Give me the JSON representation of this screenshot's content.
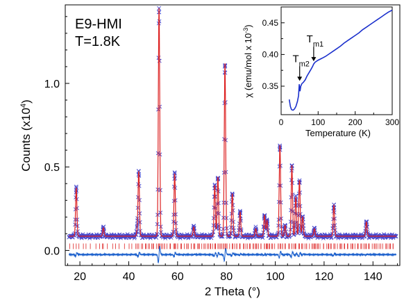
{
  "chart_data": [
    {
      "type": "scatter",
      "annotation": {
        "sample": "E9-HMI",
        "temperature": "T=1.8K"
      },
      "xlabel": "2 Theta (°)",
      "ylabel": "Counts (x10",
      "ylabel_exp": "4",
      "ylabel_close": ")",
      "xlim": [
        14,
        151
      ],
      "ylim": [
        -0.09,
        1.47
      ],
      "xticks": [
        20,
        40,
        60,
        80,
        100,
        120,
        140
      ],
      "yticks": [
        0.0,
        0.5,
        1.0
      ],
      "ytick_labels": [
        "0.0",
        "0.5",
        "1.0"
      ],
      "background_level": 0.085,
      "difference_offset": -0.025,
      "series": [
        {
          "role": "observed",
          "marker": "x",
          "color": "#4444cc"
        },
        {
          "role": "calculated",
          "color": "#dd2222"
        },
        {
          "role": "reflection-ticks",
          "color": "#dd2222"
        },
        {
          "role": "difference",
          "color": "#1a5fcc"
        }
      ],
      "peaks": [
        {
          "x": 18.5,
          "y": 0.375
        },
        {
          "x": 29.6,
          "y": 0.135
        },
        {
          "x": 43.5,
          "y": 0.12
        },
        {
          "x": 44.1,
          "y": 0.47
        },
        {
          "x": 52.4,
          "y": 1.45
        },
        {
          "x": 58.8,
          "y": 0.46
        },
        {
          "x": 66.6,
          "y": 0.14
        },
        {
          "x": 75.2,
          "y": 0.39
        },
        {
          "x": 76.5,
          "y": 0.44
        },
        {
          "x": 79.4,
          "y": 1.12
        },
        {
          "x": 82.4,
          "y": 0.34
        },
        {
          "x": 85.6,
          "y": 0.23
        },
        {
          "x": 92.0,
          "y": 0.13
        },
        {
          "x": 95.6,
          "y": 0.21
        },
        {
          "x": 96.6,
          "y": 0.18
        },
        {
          "x": 101.9,
          "y": 0.63
        },
        {
          "x": 104.0,
          "y": 0.15
        },
        {
          "x": 106.8,
          "y": 0.51
        },
        {
          "x": 108.4,
          "y": 0.32
        },
        {
          "x": 109.9,
          "y": 0.42
        },
        {
          "x": 111.2,
          "y": 0.2
        },
        {
          "x": 116.0,
          "y": 0.13
        },
        {
          "x": 124.0,
          "y": 0.27
        },
        {
          "x": 137.3,
          "y": 0.17
        }
      ]
    },
    {
      "type": "line",
      "xlabel": "Temperature (K)",
      "ylabel": "χ (emu/mol x 10",
      "ylabel_exp": "-3",
      "ylabel_close": ")",
      "xlim": [
        0,
        300
      ],
      "ylim": [
        0.305,
        0.475
      ],
      "xticks": [
        0,
        100,
        200,
        300
      ],
      "yticks": [
        0.35,
        0.4,
        0.45
      ],
      "ytick_labels": [
        "0.35",
        "0.40",
        "0.45"
      ],
      "line_color": "#1a2fcc",
      "annotations": [
        {
          "main": "T",
          "sub": "m2",
          "x": 50,
          "y": 0.355
        },
        {
          "main": "T",
          "sub": "m1",
          "x": 88,
          "y": 0.386
        }
      ],
      "series": [
        {
          "x": [
            22,
            25,
            28,
            32,
            36,
            40,
            44,
            47,
            49,
            51,
            53,
            56,
            60,
            65,
            70,
            75,
            80,
            85,
            88,
            92,
            100,
            110,
            120,
            130,
            140,
            150,
            160,
            170,
            180,
            190,
            200,
            210,
            220,
            230,
            240,
            250,
            260,
            270,
            280,
            290,
            300
          ],
          "y": [
            0.329,
            0.318,
            0.313,
            0.312,
            0.314,
            0.318,
            0.326,
            0.335,
            0.353,
            0.342,
            0.35,
            0.354,
            0.356,
            0.36,
            0.366,
            0.371,
            0.376,
            0.381,
            0.385,
            0.388,
            0.391,
            0.394,
            0.397,
            0.401,
            0.405,
            0.409,
            0.413,
            0.418,
            0.422,
            0.426,
            0.43,
            0.434,
            0.439,
            0.443,
            0.447,
            0.451,
            0.455,
            0.459,
            0.463,
            0.467,
            0.47
          ]
        }
      ]
    }
  ]
}
